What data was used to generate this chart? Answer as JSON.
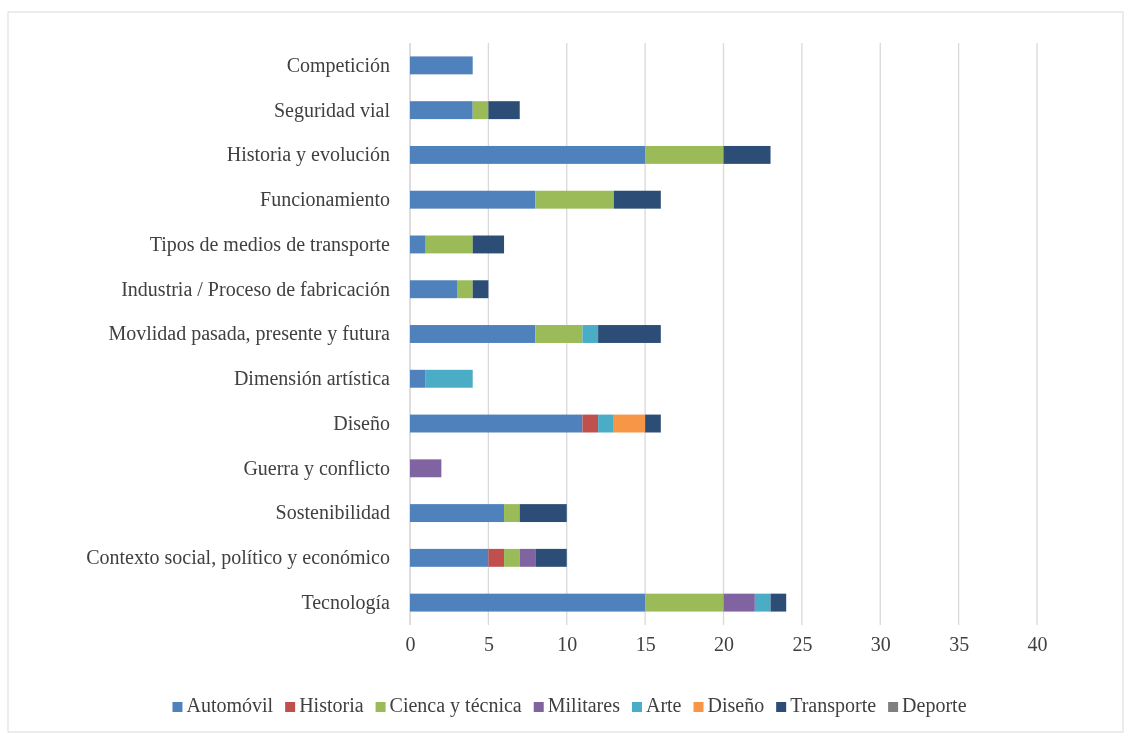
{
  "chart_data": {
    "type": "bar",
    "orientation": "horizontal",
    "stacked": true,
    "categories": [
      "Competición",
      "Seguridad vial",
      "Historia y evolución",
      "Funcionamiento",
      "Tipos de medios de transporte",
      "Industria / Proceso de fabricación",
      "Movlidad pasada, presente y futura",
      "Dimensión artística",
      "Diseño",
      "Guerra y conflicto",
      "Sostenibilidad",
      "Contexto social, político y económico",
      "Tecnología"
    ],
    "series": [
      {
        "name": "Automóvil",
        "color": "#4f81bd",
        "values": [
          4,
          4,
          15,
          8,
          1,
          3,
          8,
          1,
          11,
          null,
          6,
          5,
          15
        ]
      },
      {
        "name": "Historia",
        "color": "#c0504d",
        "values": [
          null,
          null,
          null,
          null,
          null,
          null,
          null,
          null,
          1,
          null,
          null,
          1,
          null
        ]
      },
      {
        "name": "Cienca y técnica",
        "color": "#9bbb59",
        "values": [
          null,
          1,
          5,
          5,
          3,
          1,
          3,
          null,
          null,
          null,
          1,
          1,
          5
        ]
      },
      {
        "name": "Militares",
        "color": "#8064a2",
        "values": [
          null,
          null,
          null,
          null,
          null,
          null,
          null,
          null,
          null,
          2,
          null,
          1,
          2
        ]
      },
      {
        "name": "Arte",
        "color": "#4bacc6",
        "values": [
          null,
          null,
          null,
          null,
          null,
          null,
          1,
          3,
          1,
          null,
          null,
          null,
          1
        ]
      },
      {
        "name": "Diseño",
        "color": "#f79646",
        "values": [
          null,
          null,
          null,
          null,
          null,
          null,
          null,
          null,
          2,
          null,
          null,
          null,
          null
        ]
      },
      {
        "name": "Transporte",
        "color": "#2c4d75",
        "values": [
          null,
          2,
          3,
          3,
          2,
          1,
          4,
          null,
          1,
          null,
          3,
          2,
          1
        ]
      },
      {
        "name": "Deporte",
        "color": "#7f7f7f",
        "values": [
          null,
          null,
          null,
          null,
          null,
          null,
          null,
          null,
          null,
          null,
          null,
          null,
          null
        ]
      }
    ],
    "xlim": [
      0,
      40
    ],
    "xticks": [
      0,
      5,
      10,
      15,
      20,
      25,
      30,
      35,
      40
    ],
    "grid": "x",
    "legend": "bottom"
  }
}
